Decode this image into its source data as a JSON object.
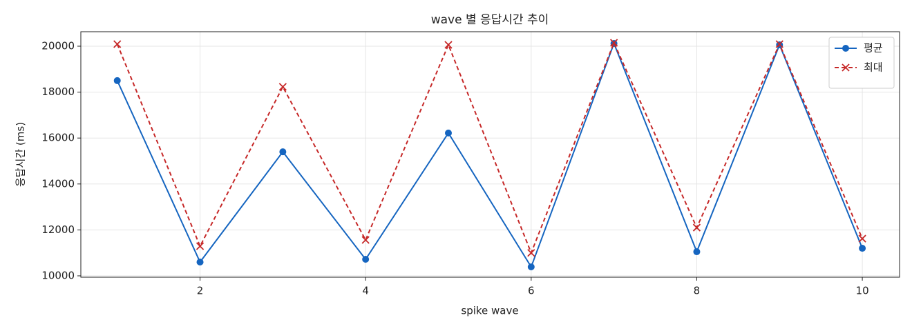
{
  "chart_data": {
    "type": "line",
    "title": "wave 별 응답시간 추이",
    "x_label": "spike wave",
    "y_label": "응답시간 (ms)",
    "x": [
      1,
      2,
      3,
      4,
      5,
      6,
      7,
      8,
      9,
      10
    ],
    "series": [
      {
        "name": "평균",
        "color": "#1565c0",
        "marker": "circle",
        "linestyle": "solid",
        "values": [
          18500,
          10600,
          15400,
          10720,
          16220,
          10390,
          20120,
          11050,
          20060,
          11200
        ]
      },
      {
        "name": "최대",
        "color": "#c62828",
        "marker": "cross",
        "linestyle": "dashed",
        "values": [
          20090,
          11290,
          18230,
          11560,
          20060,
          11000,
          20150,
          12100,
          20090,
          11620
        ]
      }
    ],
    "xlim": [
      0.56,
      10.45
    ],
    "ylim": [
      9940,
      20630
    ],
    "xticks": [
      2,
      4,
      6,
      8,
      10
    ],
    "yticks": [
      10000,
      12000,
      14000,
      16000,
      18000,
      20000
    ],
    "grid": true,
    "legend": "upper right"
  }
}
